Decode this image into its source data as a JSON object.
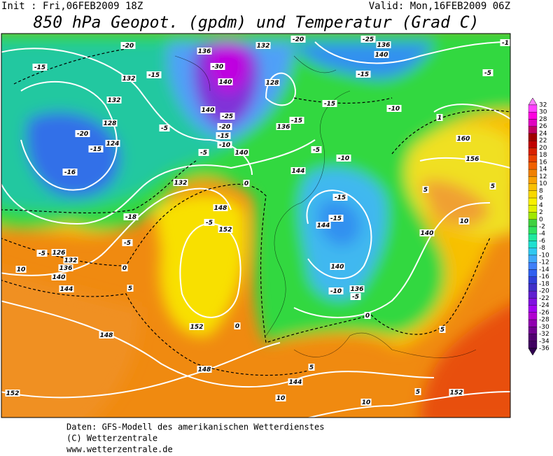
{
  "header": {
    "init": "Init : Fri,06FEB2009 18Z",
    "valid": "Valid: Mon,16FEB2009 06Z",
    "title": "850 hPa Geopot. (gpdm) und Temperatur (Grad C)"
  },
  "colorbar": {
    "labels": [
      32,
      30,
      28,
      26,
      24,
      22,
      20,
      18,
      16,
      14,
      12,
      10,
      8,
      6,
      4,
      2,
      0,
      -2,
      -4,
      -6,
      -8,
      -10,
      -12,
      -14,
      -16,
      -18,
      -20,
      -22,
      -24,
      -26,
      -28,
      -30,
      -32,
      -34,
      -36
    ],
    "colors": [
      "#ff80ff",
      "#ff40ff",
      "#ff00e0",
      "#e000c0",
      "#c00060",
      "#a00000",
      "#c00000",
      "#d82000",
      "#e84000",
      "#f06000",
      "#f08000",
      "#f8a000",
      "#f8c000",
      "#f8d800",
      "#f8f000",
      "#e0f000",
      "#a0e800",
      "#40d040",
      "#30e060",
      "#20e8a0",
      "#20e0d0",
      "#30c8f0",
      "#40a8f8",
      "#4080f8",
      "#3060f0",
      "#3040d8",
      "#4030c8",
      "#6020d0",
      "#8010e0",
      "#a000f0",
      "#b000d0",
      "#9000b0",
      "#700090",
      "#500070",
      "#400060",
      "#300050"
    ]
  },
  "map": {
    "contour_labels": [
      -15,
      -20,
      132,
      -15,
      136,
      132,
      -20,
      -25,
      136,
      140,
      -1,
      -30,
      140,
      128,
      -15,
      -5,
      132,
      -5,
      140,
      -25,
      -20,
      -15,
      -10,
      136,
      -15,
      -15,
      -10,
      1,
      160,
      128,
      -20,
      -15,
      124,
      -16,
      -5,
      140,
      -5,
      -10,
      156,
      144,
      132,
      0,
      148,
      -15,
      5,
      5,
      10,
      -18,
      -5,
      152,
      -15,
      144,
      140,
      -5,
      -5,
      126,
      132,
      136,
      0,
      10,
      140,
      144,
      5,
      140,
      -10,
      136,
      -5,
      0,
      152,
      0,
      148,
      5,
      148,
      5,
      144,
      10,
      5,
      152,
      152,
      10
    ]
  },
  "footer": [
    "Daten: GFS-Modell des amerikanischen Wetterdienstes",
    "(C) Wetterzentrale",
    "www.wetterzentrale.de"
  ]
}
